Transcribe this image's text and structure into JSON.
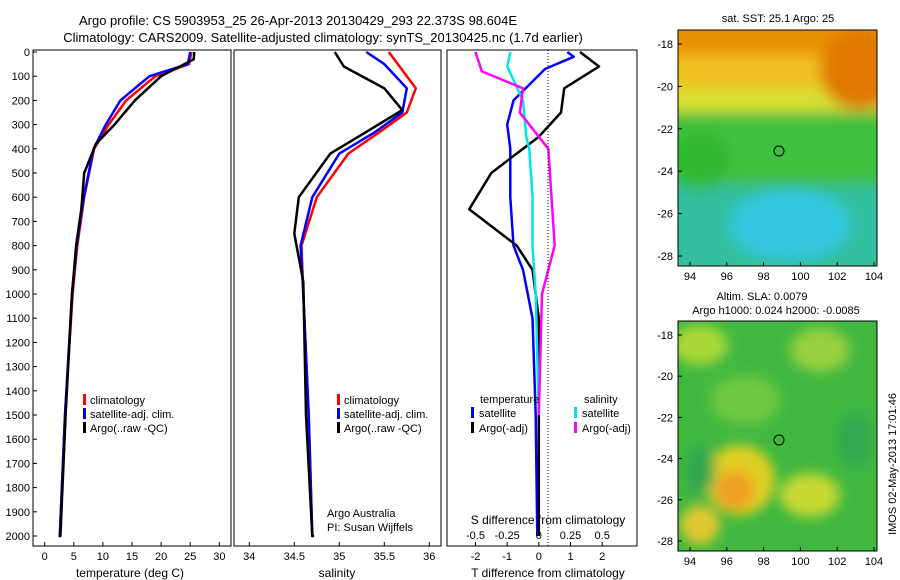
{
  "header": {
    "line1": "Argo profile: CS 5903953_25 26-Apr-2013 20130429_293 22.373S 98.604E",
    "line2": "Climatology: CARS2009. Satellite-adjusted climatology: synTS_20130425.nc (1.7d earlier)"
  },
  "colors": {
    "climatology": "#ff0000",
    "satellite": "#0000ff",
    "argo": "#000000",
    "sal_sat": "#00e5e5",
    "sal_argo": "#ff00ff"
  },
  "depth_axis": {
    "ticks": [
      0,
      100,
      200,
      300,
      400,
      500,
      600,
      700,
      800,
      900,
      1000,
      1100,
      1200,
      1300,
      1400,
      1500,
      1600,
      1700,
      1800,
      1900,
      2000
    ]
  },
  "panels": {
    "temperature": {
      "xlabel": "temperature (deg C)",
      "xticks": [
        0,
        5,
        10,
        15,
        20,
        25,
        30
      ],
      "xlim": [
        -2,
        32
      ],
      "legend": [
        "climatology",
        "satellite-adj. clim.",
        "Argo(..raw -QC)"
      ]
    },
    "salinity": {
      "xlabel": "salinity",
      "xticks": [
        "34",
        "34.5",
        "35",
        "35.5",
        "36"
      ],
      "xlim": [
        33.83,
        36.13
      ],
      "legend": [
        "climatology",
        "satellite-adj. clim.",
        "Argo(..raw -QC)"
      ],
      "note1": "Argo Australia",
      "note2": "PI: Susan Wijffels"
    },
    "difference": {
      "xlabel_top": "S difference from climatology",
      "xlabel_bottom": "T difference from climatology",
      "top_ticks": [
        "-0.5",
        "-0.25",
        "0",
        "0.25",
        "0.5"
      ],
      "bottom_ticks": [
        "-2",
        "-1",
        "0",
        "1",
        "2"
      ],
      "xlim_T": [
        -2.9,
        3.1
      ],
      "legend": {
        "temp_title": "temperature",
        "sal_title": "salinity",
        "temp_sat": "satellite",
        "temp_argo": "Argo(-adj)",
        "sal_sat": "satellite",
        "sal_argo": "Argo(-adj)"
      }
    }
  },
  "maps": {
    "sst": {
      "title": "sat. SST: 25.1  Argo: 25",
      "yticks": [
        "-18",
        "-20",
        "-22",
        "-24",
        "-26",
        "-28"
      ],
      "xticks": [
        "94",
        "96",
        "98",
        "100",
        "102",
        "104"
      ]
    },
    "sla": {
      "title1": "Altim. SLA: 0.0079",
      "title2": "Argo h1000: 0.024 h2000: -0.0085",
      "yticks": [
        "-18",
        "-20",
        "-22",
        "-24",
        "-26",
        "-28"
      ],
      "xticks": [
        "94",
        "96",
        "98",
        "100",
        "102",
        "104"
      ]
    }
  },
  "timestamp": "IMOS 02-May-2013 17:01:46",
  "chart_data": [
    {
      "type": "line",
      "title": "",
      "xlabel": "temperature (deg C)",
      "ylabel": "",
      "xlim": [
        -2,
        32
      ],
      "ylim": [
        2060,
        0
      ],
      "series": [
        {
          "name": "climatology",
          "x": [
            25.2,
            24.8,
            19,
            14,
            11,
            8.5,
            6.8,
            5.6,
            4.8,
            3.5,
            2.6,
            2.4
          ],
          "y": [
            0,
            50,
            100,
            200,
            300,
            400,
            600,
            800,
            1000,
            1500,
            2000,
            2060
          ]
        },
        {
          "name": "satellite-adj. clim.",
          "x": [
            25,
            24.6,
            18,
            13,
            10.5,
            8.4,
            6.7,
            5.5,
            4.7,
            3.5,
            2.6,
            2.4
          ],
          "y": [
            0,
            50,
            100,
            200,
            300,
            400,
            600,
            800,
            1000,
            1500,
            2000,
            2060
          ]
        },
        {
          "name": "Argo(..raw -QC)",
          "x": [
            25.7,
            25.6,
            20,
            15.5,
            12,
            8.8,
            6.8,
            6.3,
            5.4,
            4.7,
            3.6,
            2.7,
            2.5
          ],
          "y": [
            0,
            30,
            100,
            200,
            300,
            380,
            500,
            650,
            800,
            1000,
            1500,
            2000,
            2060
          ]
        }
      ]
    },
    {
      "type": "line",
      "title": "",
      "xlabel": "salinity",
      "ylabel": "",
      "xlim": [
        33.83,
        36.13
      ],
      "ylim": [
        2060,
        0
      ],
      "series": [
        {
          "name": "climatology",
          "x": [
            35.55,
            35.65,
            35.85,
            35.75,
            35.45,
            35.1,
            34.75,
            34.58,
            34.6,
            34.66,
            34.7,
            34.71
          ],
          "y": [
            0,
            50,
            150,
            250,
            330,
            420,
            600,
            800,
            1000,
            1500,
            2000,
            2060
          ]
        },
        {
          "name": "satellite-adj. clim.",
          "x": [
            35.3,
            35.5,
            35.75,
            35.7,
            35.4,
            35.0,
            34.7,
            34.57,
            34.6,
            34.66,
            34.7,
            34.71
          ],
          "y": [
            0,
            50,
            150,
            250,
            330,
            420,
            600,
            800,
            1000,
            1500,
            2000,
            2060
          ]
        },
        {
          "name": "Argo(..raw -QC)",
          "x": [
            34.95,
            35.05,
            35.5,
            35.7,
            35.3,
            34.9,
            34.55,
            34.5,
            34.6,
            34.63,
            34.7,
            34.72
          ],
          "y": [
            0,
            60,
            150,
            240,
            330,
            420,
            600,
            750,
            950,
            1500,
            2000,
            2060
          ]
        }
      ]
    },
    {
      "type": "line",
      "title": "",
      "xlabel": "T difference from climatology",
      "ylabel": "",
      "xlim": [
        -2.9,
        3.1
      ],
      "ylim": [
        2060,
        0
      ],
      "series": [
        {
          "name": "temperature satellite",
          "x": [
            0.9,
            1.1,
            0.2,
            -0.8,
            -1,
            -0.9,
            -0.9,
            -0.8,
            -0.5,
            -0.2,
            -0.1,
            -0.05
          ],
          "y": [
            0,
            20,
            70,
            200,
            300,
            400,
            600,
            800,
            900,
            1100,
            1500,
            2000
          ]
        },
        {
          "name": "temperature Argo(-adj)",
          "x": [
            1.3,
            1.9,
            0.8,
            0.7,
            0,
            -1.5,
            -2.2,
            -0.7,
            -0.2,
            0,
            0,
            0
          ],
          "y": [
            0,
            60,
            150,
            250,
            350,
            500,
            650,
            800,
            900,
            1100,
            1500,
            2000
          ]
        },
        {
          "name": "salinity satellite",
          "x": [
            -0.9,
            -1,
            -0.5,
            -0.4,
            -0.3,
            -0.2,
            -0.2,
            -0.1,
            0
          ],
          "y": [
            0,
            60,
            200,
            350,
            400,
            600,
            800,
            1000,
            1500
          ]
        },
        {
          "name": "salinity Argo(-adj)",
          "x": [
            -2,
            -1.8,
            -0.5,
            -0.6,
            0.3,
            0.4,
            0.5,
            0.3,
            0.1,
            0
          ],
          "y": [
            0,
            80,
            150,
            250,
            400,
            600,
            800,
            900,
            1000,
            1500
          ]
        }
      ]
    }
  ]
}
